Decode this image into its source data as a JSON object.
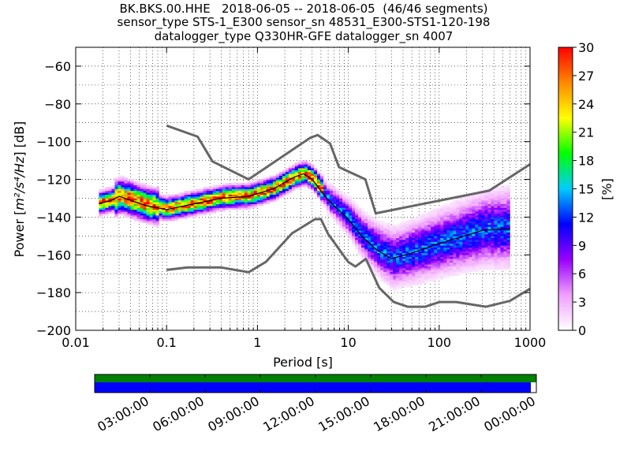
{
  "chart_data": {
    "type": "heatmap",
    "title_lines": [
      "BK.BKS.00.HHE   2018-06-05 -- 2018-06-05  (46/46 segments)",
      "sensor_type STS-1_E300 sensor_sn 48531_E300-STS1-120-198",
      "datalogger_type Q330HR-GFE datalogger_sn 4007"
    ],
    "xlabel": "Period [s]",
    "ylabel_prefix": "Power [",
    "ylabel_math": "m²/s⁴/Hz",
    "ylabel_suffix": "] [dB]",
    "x_scale": "log",
    "xlim": [
      0.01,
      1000
    ],
    "ylim": [
      -200,
      -50
    ],
    "x_ticks": [
      {
        "value": 0.01,
        "label": "0.01"
      },
      {
        "value": 0.1,
        "label": "0.1"
      },
      {
        "value": 1,
        "label": "1"
      },
      {
        "value": 10,
        "label": "10"
      },
      {
        "value": 100,
        "label": "100"
      },
      {
        "value": 1000,
        "label": "1000"
      }
    ],
    "y_ticks": [
      {
        "value": -60,
        "label": "−60"
      },
      {
        "value": -80,
        "label": "−80"
      },
      {
        "value": -100,
        "label": "−100"
      },
      {
        "value": -120,
        "label": "−120"
      },
      {
        "value": -140,
        "label": "−140"
      },
      {
        "value": -160,
        "label": "−160"
      },
      {
        "value": -180,
        "label": "−180"
      },
      {
        "value": -200,
        "label": "−200"
      }
    ],
    "grid": true,
    "colorbar": {
      "label": "[%]",
      "range": [
        0,
        30
      ],
      "ticks": [
        {
          "value": 0,
          "label": "0"
        },
        {
          "value": 3,
          "label": "3"
        },
        {
          "value": 6,
          "label": "6"
        },
        {
          "value": 9,
          "label": "9"
        },
        {
          "value": 12,
          "label": "12"
        },
        {
          "value": 15,
          "label": "15"
        },
        {
          "value": 18,
          "label": "18"
        },
        {
          "value": 21,
          "label": "21"
        },
        {
          "value": 24,
          "label": "24"
        },
        {
          "value": 27,
          "label": "27"
        },
        {
          "value": 30,
          "label": "30"
        }
      ],
      "colors": [
        "#ffffff",
        "#f0a0ff",
        "#9900ff",
        "#0000ff",
        "#00ccff",
        "#00ff00",
        "#ffff00",
        "#ff8800",
        "#ff0000"
      ]
    },
    "nhnm": {
      "name": "New High Noise Model",
      "color": "#666666",
      "points": [
        [
          0.1,
          -91.5
        ],
        [
          0.22,
          -97.4
        ],
        [
          0.32,
          -110.5
        ],
        [
          0.8,
          -120
        ],
        [
          3.8,
          -98
        ],
        [
          4.6,
          -96.5
        ],
        [
          6.3,
          -101
        ],
        [
          7.9,
          -113.5
        ],
        [
          15.4,
          -120
        ],
        [
          20,
          -138
        ],
        [
          354.8,
          -126
        ],
        [
          1000,
          -112
        ]
      ]
    },
    "nlnm": {
      "name": "New Low Noise Model",
      "color": "#666666",
      "points": [
        [
          0.1,
          -168
        ],
        [
          0.17,
          -166.7
        ],
        [
          0.4,
          -166.7
        ],
        [
          0.8,
          -169.2
        ],
        [
          1.24,
          -163.7
        ],
        [
          2.4,
          -148.6
        ],
        [
          4.3,
          -141.1
        ],
        [
          5.0,
          -141.1
        ],
        [
          6.0,
          -149
        ],
        [
          10.0,
          -163.8
        ],
        [
          12.0,
          -166.2
        ],
        [
          15.6,
          -162.1
        ],
        [
          21.9,
          -177.5
        ],
        [
          31.6,
          -185
        ],
        [
          45.0,
          -187.5
        ],
        [
          70.0,
          -187.5
        ],
        [
          101.0,
          -185
        ],
        [
          154.0,
          -185
        ],
        [
          328.0,
          -187.5
        ],
        [
          600.0,
          -184.4
        ],
        [
          1000,
          -178
        ]
      ]
    },
    "mode_line": {
      "name": "mode",
      "color": "#000000",
      "points": [
        [
          0.018,
          -133
        ],
        [
          0.025,
          -131
        ],
        [
          0.03,
          -129
        ],
        [
          0.04,
          -131
        ],
        [
          0.06,
          -134
        ],
        [
          0.1,
          -136
        ],
        [
          0.2,
          -133
        ],
        [
          0.4,
          -130
        ],
        [
          0.8,
          -129
        ],
        [
          1.5,
          -125
        ],
        [
          2.5,
          -119
        ],
        [
          3.2,
          -117
        ],
        [
          4.0,
          -120
        ],
        [
          6.0,
          -131
        ],
        [
          10.0,
          -141
        ],
        [
          14.0,
          -150
        ],
        [
          20.0,
          -157
        ],
        [
          30.0,
          -162
        ],
        [
          50.0,
          -159
        ],
        [
          100.0,
          -154
        ],
        [
          300.0,
          -147
        ],
        [
          600.0,
          -146
        ]
      ]
    },
    "coverage": {
      "tick_labels": [
        "03:00:00",
        "06:00:00",
        "09:00:00",
        "12:00:00",
        "15:00:00",
        "18:00:00",
        "21:00:00",
        "00:00:00"
      ],
      "time_range": [
        "00:00:00",
        "24:00:00"
      ],
      "data_end_hour": 23.7,
      "data_color": "#0000ff",
      "psd_color": "#008000"
    }
  }
}
